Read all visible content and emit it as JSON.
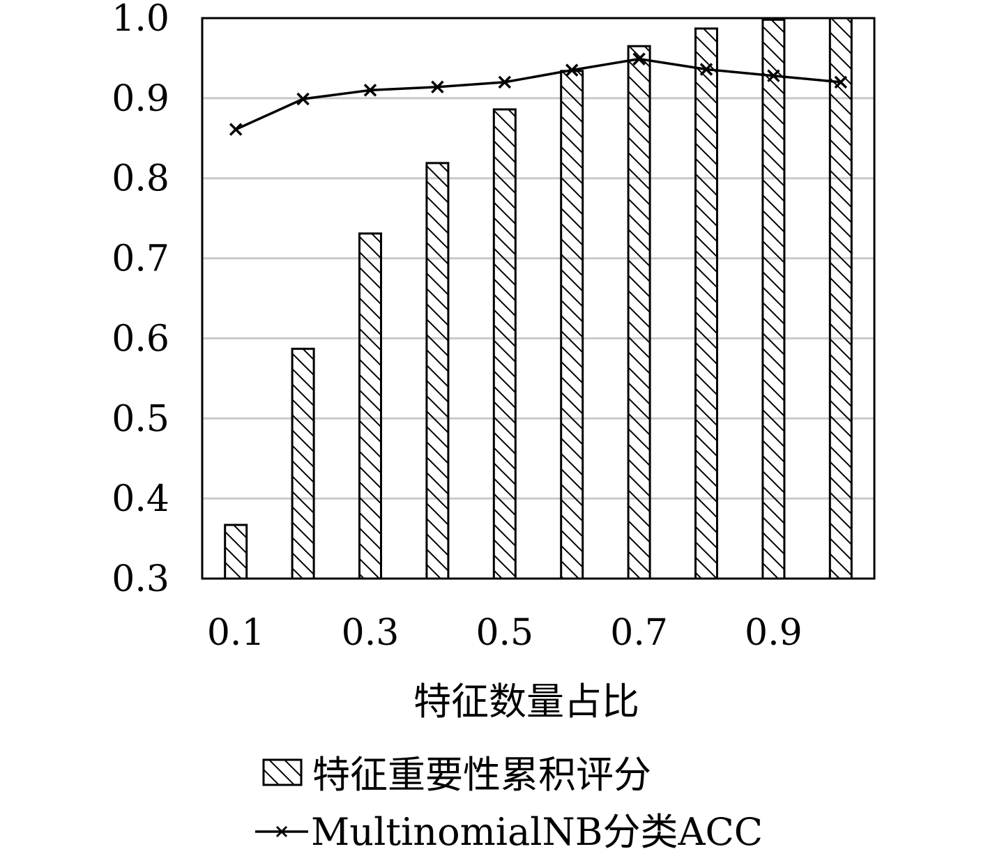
{
  "chart_data": {
    "type": "bar",
    "xlabel": "特征数量占比",
    "ylabel": "",
    "ylim": [
      0.3,
      1.0
    ],
    "yticks": [
      "0.3",
      "0.4",
      "0.5",
      "0.6",
      "0.7",
      "0.8",
      "0.9",
      "1.0"
    ],
    "xticks": [
      "0.1",
      "0.3",
      "0.5",
      "0.7",
      "0.9"
    ],
    "categories": [
      "0.1",
      "0.2",
      "0.3",
      "0.4",
      "0.5",
      "0.6",
      "0.7",
      "0.8",
      "0.9",
      "1.0"
    ],
    "grid": true,
    "legend_position": "bottom",
    "series": [
      {
        "name": "特征重要性累积评分",
        "type": "bar",
        "pattern": "diagonal-hatch",
        "values": [
          0.367,
          0.587,
          0.731,
          0.819,
          0.886,
          0.934,
          0.965,
          0.987,
          0.998,
          1.0
        ]
      },
      {
        "name": "MultinomialNB分类ACC",
        "type": "line",
        "marker": "x",
        "values": [
          0.861,
          0.899,
          0.91,
          0.914,
          0.92,
          0.935,
          0.949,
          0.936,
          0.928,
          0.92
        ]
      }
    ],
    "colors": {
      "ink": "#000000",
      "grid": "#c8c8c8",
      "background": "#ffffff"
    }
  }
}
